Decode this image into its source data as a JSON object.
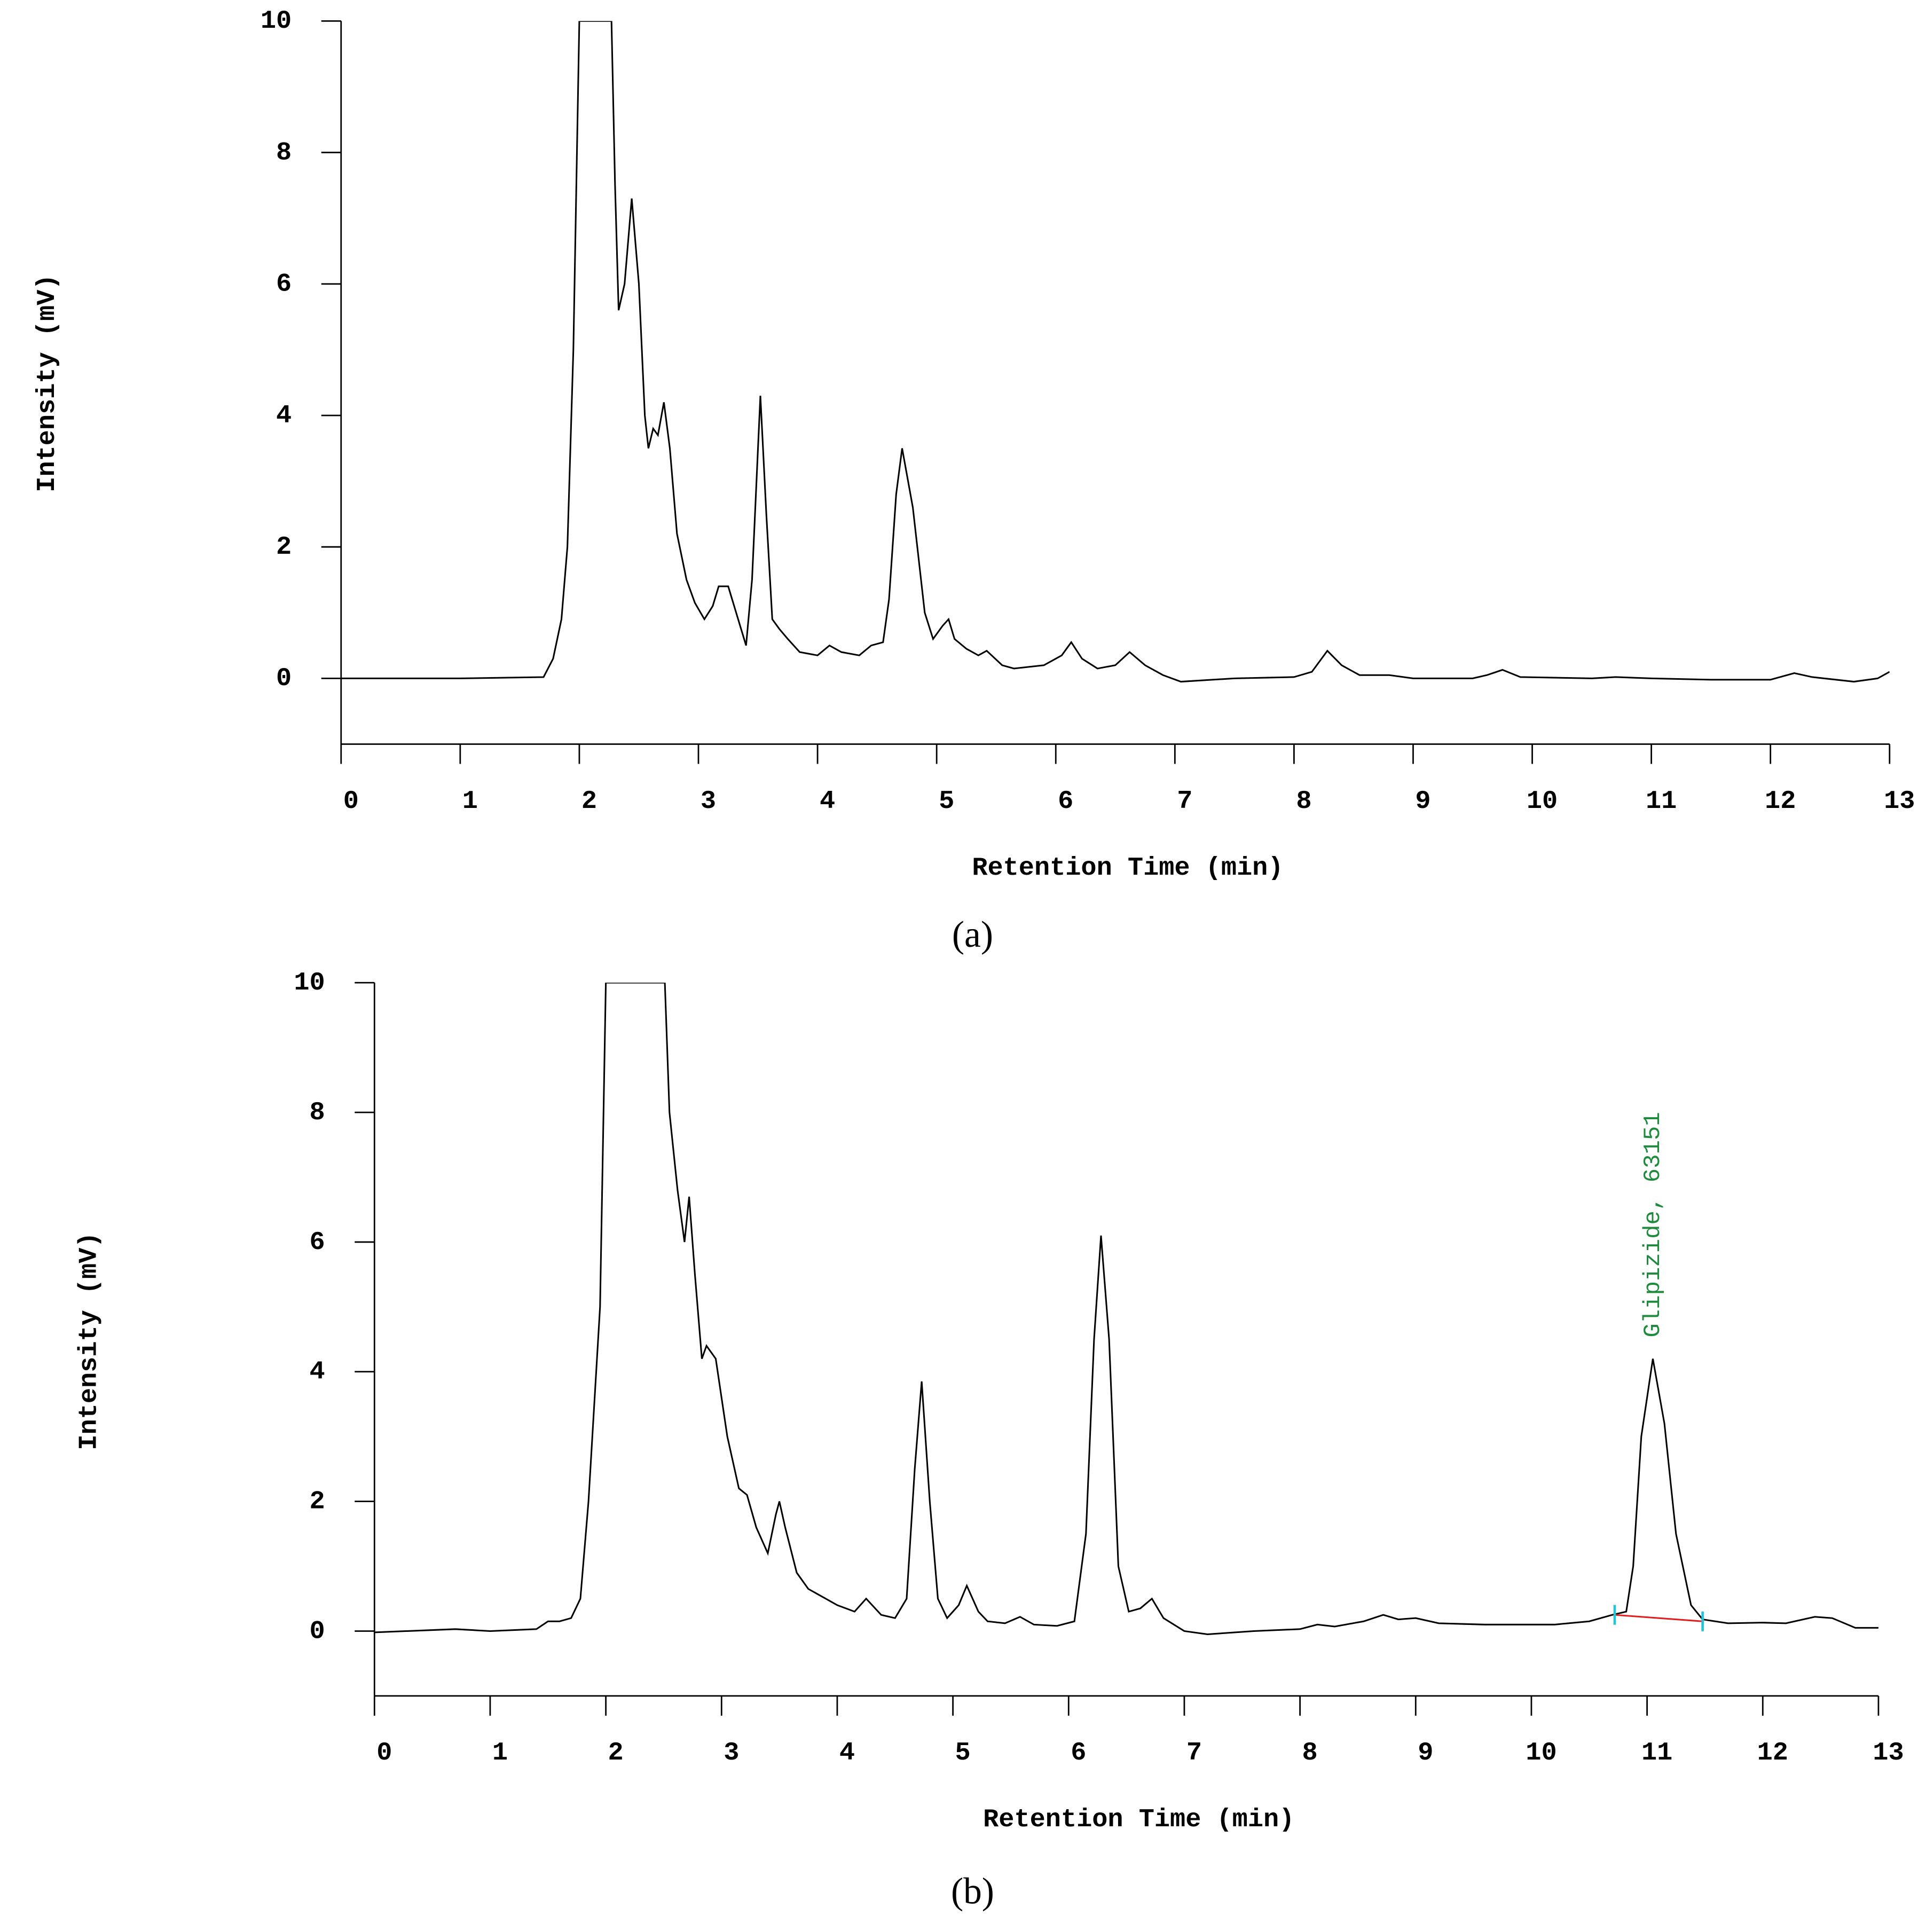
{
  "chart_data": [
    {
      "type": "line",
      "color": "#000000",
      "xlabel": "Retention Time (min)",
      "ylabel": "Intensity (mV)",
      "caption": "(a)",
      "xlim": [
        0,
        13
      ],
      "ylim": [
        -1,
        10
      ],
      "xticks": [
        0,
        1,
        2,
        3,
        4,
        5,
        6,
        7,
        8,
        9,
        10,
        11,
        12,
        13
      ],
      "yticks": [
        0,
        2,
        4,
        6,
        8,
        10
      ],
      "x": [
        0,
        1,
        1.7,
        1.78,
        1.85,
        1.9,
        1.95,
        2.0,
        2.27,
        2.3,
        2.33,
        2.38,
        2.44,
        2.5,
        2.55,
        2.58,
        2.62,
        2.66,
        2.71,
        2.76,
        2.82,
        2.9,
        2.97,
        3.05,
        3.12,
        3.17,
        3.25,
        3.3,
        3.4,
        3.45,
        3.52,
        3.57,
        3.62,
        3.68,
        3.75,
        3.85,
        4.0,
        4.1,
        4.2,
        4.35,
        4.45,
        4.55,
        4.6,
        4.66,
        4.71,
        4.8,
        4.9,
        4.97,
        5.05,
        5.1,
        5.15,
        5.25,
        5.35,
        5.42,
        5.55,
        5.65,
        5.9,
        6.05,
        6.13,
        6.22,
        6.35,
        6.5,
        6.62,
        6.75,
        6.9,
        7.05,
        7.5,
        8.0,
        8.15,
        8.28,
        8.4,
        8.55,
        8.8,
        9.0,
        9.5,
        9.62,
        9.75,
        9.9,
        10.5,
        10.7,
        11.0,
        11.5,
        12.0,
        12.2,
        12.35,
        12.7,
        12.9,
        13.0
      ],
      "values": [
        0,
        0,
        0.02,
        0.3,
        0.9,
        2,
        5,
        10,
        10,
        7.5,
        5.6,
        6,
        7.3,
        6,
        4,
        3.5,
        3.8,
        3.7,
        4.2,
        3.5,
        2.2,
        1.5,
        1.15,
        0.9,
        1.1,
        1.4,
        1.4,
        1.1,
        0.5,
        1.5,
        4.3,
        2.5,
        0.9,
        0.75,
        0.6,
        0.4,
        0.35,
        0.5,
        0.4,
        0.35,
        0.5,
        0.55,
        1.2,
        2.8,
        3.5,
        2.6,
        1.0,
        0.6,
        0.8,
        0.9,
        0.6,
        0.45,
        0.35,
        0.42,
        0.2,
        0.15,
        0.2,
        0.35,
        0.55,
        0.3,
        0.15,
        0.2,
        0.4,
        0.2,
        0.05,
        -0.05,
        0,
        0.02,
        0.1,
        0.42,
        0.2,
        0.05,
        0.05,
        0,
        0,
        0.05,
        0.13,
        0.02,
        0,
        0.02,
        0,
        -0.02,
        -0.02,
        0.08,
        0.02,
        -0.05,
        0,
        0.1
      ]
    },
    {
      "type": "line",
      "color": "#000000",
      "xlabel": "Retention Time (min)",
      "ylabel": "Intensity (mV)",
      "caption": "(b)",
      "xlim": [
        0,
        13
      ],
      "ylim": [
        -1,
        10
      ],
      "xticks": [
        0,
        1,
        2,
        3,
        4,
        5,
        6,
        7,
        8,
        9,
        10,
        11,
        12,
        13
      ],
      "yticks": [
        0,
        2,
        4,
        6,
        8,
        10
      ],
      "x": [
        0,
        0.7,
        1.0,
        1.4,
        1.5,
        1.6,
        1.7,
        1.78,
        1.85,
        1.95,
        2.0,
        2.51,
        2.55,
        2.62,
        2.68,
        2.72,
        2.77,
        2.83,
        2.87,
        2.95,
        3.05,
        3.15,
        3.22,
        3.3,
        3.4,
        3.47,
        3.5,
        3.55,
        3.65,
        3.75,
        3.9,
        4.0,
        4.15,
        4.25,
        4.38,
        4.5,
        4.6,
        4.67,
        4.73,
        4.8,
        4.87,
        4.95,
        5.05,
        5.12,
        5.22,
        5.3,
        5.45,
        5.58,
        5.7,
        5.9,
        6.05,
        6.15,
        6.22,
        6.28,
        6.35,
        6.43,
        6.52,
        6.62,
        6.72,
        6.82,
        7.0,
        7.2,
        7.6,
        8.0,
        8.15,
        8.3,
        8.55,
        8.72,
        8.85,
        9.0,
        9.2,
        9.6,
        10.2,
        10.5,
        10.7,
        10.82,
        10.88,
        10.95,
        11.05,
        11.15,
        11.25,
        11.38,
        11.48,
        11.7,
        12.0,
        12.2,
        12.45,
        12.6,
        12.8,
        13.0
      ],
      "values": [
        -0.02,
        0.03,
        0,
        0.03,
        0.15,
        0.15,
        0.2,
        0.5,
        2,
        5,
        10,
        10,
        8,
        6.8,
        6,
        6.7,
        5.5,
        4.2,
        4.4,
        4.2,
        3,
        2.2,
        2.1,
        1.6,
        1.2,
        1.8,
        2.0,
        1.6,
        0.9,
        0.65,
        0.5,
        0.4,
        0.3,
        0.5,
        0.25,
        0.2,
        0.5,
        2.5,
        3.85,
        2.0,
        0.5,
        0.2,
        0.4,
        0.7,
        0.3,
        0.15,
        0.12,
        0.22,
        0.1,
        0.08,
        0.15,
        1.5,
        4.5,
        6.1,
        4.5,
        1.0,
        0.3,
        0.35,
        0.5,
        0.2,
        0,
        -0.05,
        0,
        0.03,
        0.1,
        0.07,
        0.15,
        0.25,
        0.18,
        0.2,
        0.12,
        0.1,
        0.1,
        0.15,
        0.25,
        0.3,
        1.0,
        3.0,
        4.2,
        3.2,
        1.5,
        0.4,
        0.18,
        0.12,
        0.13,
        0.12,
        0.22,
        0.2,
        0.05,
        0.05
      ],
      "baseline": {
        "x": [
          10.72,
          11.48
        ],
        "values": [
          0.25,
          0.15
        ],
        "color": "#e02020"
      },
      "annotation": {
        "text": "Glipizide, 63151",
        "x": 11.05,
        "y": 4.3
      }
    }
  ]
}
